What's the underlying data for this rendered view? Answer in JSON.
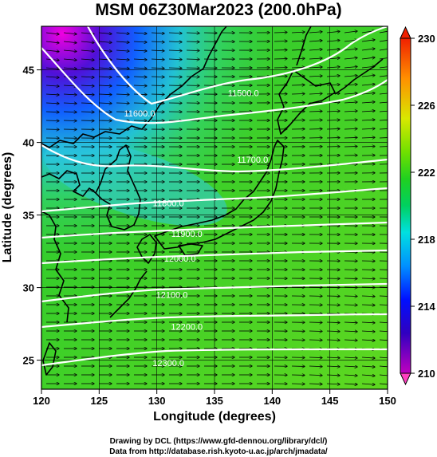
{
  "title": "MSM 06Z30Mar2023 (200.0hPa)",
  "map": {
    "lon_range": [
      120,
      150
    ],
    "lat_range": [
      23,
      48
    ],
    "x_ticks": [
      "120",
      "125",
      "130",
      "135",
      "140",
      "145",
      "150"
    ],
    "y_ticks": [
      "25",
      "30",
      "35",
      "40",
      "45"
    ],
    "x_axis_label": "Longitude (degrees)",
    "y_axis_label": "Latitude  (degrees)"
  },
  "colorbar": {
    "range": [
      210,
      230
    ],
    "tick_labels": [
      "210",
      "214",
      "218",
      "222",
      "226",
      "230"
    ]
  },
  "contour_labels": [
    {
      "text": "11500.0",
      "lon": 137.5,
      "lat": 43.2
    },
    {
      "text": "11600.0",
      "lon": 128.5,
      "lat": 41.8
    },
    {
      "text": "11700.0",
      "lon": 138.3,
      "lat": 38.6
    },
    {
      "text": "11800.0",
      "lon": 131.0,
      "lat": 35.6
    },
    {
      "text": "11900.0",
      "lon": 132.6,
      "lat": 33.5
    },
    {
      "text": "12000.0",
      "lon": 132.0,
      "lat": 31.8
    },
    {
      "text": "12100.0",
      "lon": 131.3,
      "lat": 29.3
    },
    {
      "text": "12200.0",
      "lon": 132.6,
      "lat": 27.1
    },
    {
      "text": "12300.0",
      "lon": 131.0,
      "lat": 24.6
    }
  ],
  "colors": {
    "land_outline": "#000000",
    "contour_line": "#ffffff",
    "wind_vector": "#000000"
  },
  "credits": {
    "line1": "Drawing by DCL (https://www.gfd-dennou.org/library/dcl/)",
    "line2": "Data from http://database.rish.kyoto-u.ac.jp/arch/jmadata/"
  }
}
